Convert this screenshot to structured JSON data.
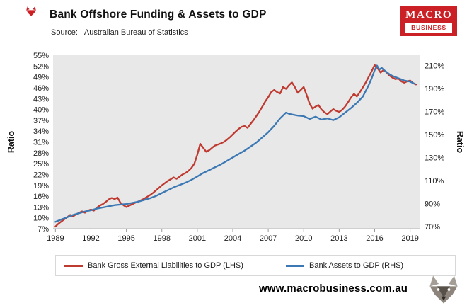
{
  "header": {
    "source_label": "Source:",
    "source_value": "Australian Bureau of Statistics",
    "logo": {
      "line1": "MACRO",
      "line2": "BUSINESS"
    }
  },
  "footer": {
    "website": "www.macrobusiness.com.au"
  },
  "colors": {
    "brand_red": "#cc2027",
    "series_red": "#bf3a30",
    "series_blue": "#3c78b4",
    "plot_background": "#e8e8e8"
  },
  "chart_data": {
    "type": "line",
    "title": "Bank Offshore Funding & Assets to GDP",
    "source": "Australian Bureau of Statistics",
    "grid": false,
    "legend_position": "bottom",
    "plot_background": "#e8e8e8",
    "x_range": [
      1988.8,
      2019.8
    ],
    "x_ticks": [
      1989,
      1992,
      1995,
      1998,
      2001,
      2004,
      2007,
      2010,
      2013,
      2016,
      2019
    ],
    "left_axis": {
      "label": "Ratio",
      "range": [
        7,
        55
      ],
      "ticks": [
        7,
        10,
        13,
        16,
        19,
        22,
        25,
        28,
        31,
        34,
        37,
        40,
        43,
        46,
        49,
        52,
        55
      ],
      "format": "percent"
    },
    "right_axis": {
      "label": "Ratio",
      "range": [
        68,
        219
      ],
      "ticks": [
        70,
        90,
        110,
        130,
        150,
        170,
        190,
        210
      ],
      "format": "percent"
    },
    "series": [
      {
        "name": "Bank Gross External Liabilities to GDP (LHS)",
        "axis": "left",
        "color": "#bf3a30",
        "points": [
          [
            1989,
            7.6
          ],
          [
            1989.25,
            8.4
          ],
          [
            1989.5,
            9
          ],
          [
            1989.75,
            9.6
          ],
          [
            1990,
            10.2
          ],
          [
            1990.25,
            10.8
          ],
          [
            1990.5,
            10.4
          ],
          [
            1990.75,
            11
          ],
          [
            1991,
            11.4
          ],
          [
            1991.25,
            11.8
          ],
          [
            1991.5,
            11.4
          ],
          [
            1991.75,
            12
          ],
          [
            1992,
            12.3
          ],
          [
            1992.25,
            12
          ],
          [
            1992.5,
            12.8
          ],
          [
            1992.75,
            13.4
          ],
          [
            1993,
            13.8
          ],
          [
            1993.25,
            14.4
          ],
          [
            1993.5,
            15.1
          ],
          [
            1993.75,
            15.5
          ],
          [
            1994,
            15.2
          ],
          [
            1994.25,
            15.6
          ],
          [
            1994.5,
            14.2
          ],
          [
            1994.75,
            13.5
          ],
          [
            1995,
            13
          ],
          [
            1995.25,
            13.4
          ],
          [
            1995.5,
            13.8
          ],
          [
            1995.75,
            14.2
          ],
          [
            1996,
            14.5
          ],
          [
            1996.25,
            14.9
          ],
          [
            1996.5,
            15.3
          ],
          [
            1996.75,
            15.8
          ],
          [
            1997,
            16.3
          ],
          [
            1997.25,
            16.9
          ],
          [
            1997.5,
            17.6
          ],
          [
            1997.75,
            18.3
          ],
          [
            1998,
            19
          ],
          [
            1998.25,
            19.6
          ],
          [
            1998.5,
            20.2
          ],
          [
            1998.75,
            20.7
          ],
          [
            1999,
            21.2
          ],
          [
            1999.25,
            20.8
          ],
          [
            1999.5,
            21.4
          ],
          [
            1999.75,
            22
          ],
          [
            2000,
            22.4
          ],
          [
            2000.25,
            23
          ],
          [
            2000.5,
            23.8
          ],
          [
            2000.75,
            25
          ],
          [
            2001,
            27.5
          ],
          [
            2001.25,
            30.5
          ],
          [
            2001.5,
            29.4
          ],
          [
            2001.75,
            28.3
          ],
          [
            2002,
            28.7
          ],
          [
            2002.25,
            29.4
          ],
          [
            2002.5,
            30
          ],
          [
            2002.75,
            30.3
          ],
          [
            2003,
            30.6
          ],
          [
            2003.25,
            31
          ],
          [
            2003.5,
            31.6
          ],
          [
            2003.75,
            32.3
          ],
          [
            2004,
            33.1
          ],
          [
            2004.25,
            33.9
          ],
          [
            2004.5,
            34.6
          ],
          [
            2004.75,
            35.2
          ],
          [
            2005,
            35.4
          ],
          [
            2005.25,
            34.9
          ],
          [
            2005.5,
            36
          ],
          [
            2005.75,
            37
          ],
          [
            2006,
            38.2
          ],
          [
            2006.25,
            39.4
          ],
          [
            2006.5,
            40.8
          ],
          [
            2006.75,
            42.2
          ],
          [
            2007,
            43.4
          ],
          [
            2007.25,
            44.8
          ],
          [
            2007.5,
            45.4
          ],
          [
            2007.75,
            44.8
          ],
          [
            2008,
            44.4
          ],
          [
            2008.25,
            46.2
          ],
          [
            2008.5,
            45.7
          ],
          [
            2008.75,
            46.7
          ],
          [
            2009,
            47.5
          ],
          [
            2009.25,
            46.2
          ],
          [
            2009.5,
            44.6
          ],
          [
            2009.75,
            45.4
          ],
          [
            2010,
            46.2
          ],
          [
            2010.25,
            44
          ],
          [
            2010.5,
            41.6
          ],
          [
            2010.75,
            40.2
          ],
          [
            2011,
            40.8
          ],
          [
            2011.25,
            41.2
          ],
          [
            2011.5,
            40
          ],
          [
            2011.75,
            39.2
          ],
          [
            2012,
            38.7
          ],
          [
            2012.25,
            39.4
          ],
          [
            2012.5,
            40.1
          ],
          [
            2012.75,
            39.6
          ],
          [
            2013,
            39.3
          ],
          [
            2013.25,
            39.9
          ],
          [
            2013.5,
            40.8
          ],
          [
            2013.75,
            42
          ],
          [
            2014,
            43.3
          ],
          [
            2014.25,
            44.3
          ],
          [
            2014.5,
            43.6
          ],
          [
            2014.75,
            44.8
          ],
          [
            2015,
            46.1
          ],
          [
            2015.25,
            47.5
          ],
          [
            2015.5,
            49
          ],
          [
            2015.75,
            50.6
          ],
          [
            2016,
            52.3
          ],
          [
            2016.25,
            51.4
          ],
          [
            2016.5,
            50.2
          ],
          [
            2016.75,
            50.9
          ],
          [
            2017,
            50.3
          ],
          [
            2017.25,
            49.4
          ],
          [
            2017.5,
            48.8
          ],
          [
            2017.75,
            48.4
          ],
          [
            2018,
            48.6
          ],
          [
            2018.25,
            47.8
          ],
          [
            2018.5,
            47.4
          ],
          [
            2018.75,
            47.8
          ],
          [
            2019,
            48
          ],
          [
            2019.25,
            47.3
          ],
          [
            2019.5,
            46.9
          ]
        ]
      },
      {
        "name": "Bank Assets to GDP (RHS)",
        "axis": "right",
        "color": "#3c78b4",
        "points": [
          [
            1989,
            74
          ],
          [
            1989.5,
            76
          ],
          [
            1990,
            78
          ],
          [
            1990.5,
            80
          ],
          [
            1991,
            81.5
          ],
          [
            1991.5,
            83
          ],
          [
            1992,
            84
          ],
          [
            1992.5,
            85.5
          ],
          [
            1993,
            86.5
          ],
          [
            1993.5,
            87.5
          ],
          [
            1994,
            88.5
          ],
          [
            1994.5,
            89
          ],
          [
            1995,
            89.5
          ],
          [
            1995.5,
            90.5
          ],
          [
            1996,
            91.5
          ],
          [
            1996.5,
            93
          ],
          [
            1997,
            94.5
          ],
          [
            1997.5,
            96.5
          ],
          [
            1998,
            99
          ],
          [
            1998.5,
            101.5
          ],
          [
            1999,
            104
          ],
          [
            1999.5,
            106
          ],
          [
            2000,
            108
          ],
          [
            2000.5,
            110.5
          ],
          [
            2001,
            113.5
          ],
          [
            2001.5,
            116.5
          ],
          [
            2002,
            119
          ],
          [
            2002.5,
            121.5
          ],
          [
            2003,
            124
          ],
          [
            2003.5,
            127
          ],
          [
            2004,
            130
          ],
          [
            2004.5,
            133
          ],
          [
            2005,
            136
          ],
          [
            2005.5,
            139.5
          ],
          [
            2006,
            143
          ],
          [
            2006.5,
            147.5
          ],
          [
            2007,
            152
          ],
          [
            2007.5,
            157.5
          ],
          [
            2008,
            164
          ],
          [
            2008.25,
            166.5
          ],
          [
            2008.5,
            169
          ],
          [
            2008.75,
            168
          ],
          [
            2009,
            167.5
          ],
          [
            2009.5,
            166.5
          ],
          [
            2010,
            166
          ],
          [
            2010.5,
            163.5
          ],
          [
            2011,
            165.5
          ],
          [
            2011.5,
            163
          ],
          [
            2012,
            164
          ],
          [
            2012.5,
            162.5
          ],
          [
            2013,
            165
          ],
          [
            2013.5,
            169
          ],
          [
            2014,
            173
          ],
          [
            2014.5,
            177.5
          ],
          [
            2015,
            183
          ],
          [
            2015.5,
            193
          ],
          [
            2015.75,
            199
          ],
          [
            2016,
            206
          ],
          [
            2016.2,
            210
          ],
          [
            2016.4,
            206.5
          ],
          [
            2016.6,
            208
          ],
          [
            2016.8,
            206
          ],
          [
            2017,
            204.5
          ],
          [
            2017.25,
            202.5
          ],
          [
            2017.5,
            201
          ],
          [
            2018,
            199
          ],
          [
            2018.5,
            197
          ],
          [
            2019,
            196
          ],
          [
            2019.4,
            194
          ]
        ]
      }
    ]
  }
}
